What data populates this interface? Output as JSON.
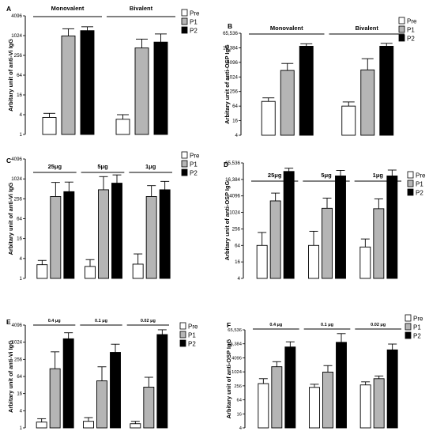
{
  "legend": {
    "labels": [
      "Pre",
      "P1",
      "P2"
    ],
    "colors": [
      "#ffffff",
      "#b5b5b5",
      "#000000"
    ]
  },
  "chart_data": [
    {
      "type": "bar",
      "panel": "A",
      "scale": "log2",
      "ylabel": "Arbitary unit of anti-Vi IgG",
      "yticks": [
        "1",
        "4",
        "16",
        "64",
        "256",
        "1024",
        "4096"
      ],
      "ylim": [
        1,
        4096
      ],
      "groups": [
        {
          "label": "Monovalent",
          "values": [
            3.3,
            1000,
            1450
          ],
          "errors": [
            4.4,
            1650,
            1900
          ]
        },
        {
          "label": "Bivalent",
          "values": [
            2.9,
            430,
            650
          ],
          "errors": [
            4.0,
            800,
            1150
          ]
        }
      ],
      "legend_pos": "top-right"
    },
    {
      "type": "bar",
      "panel": "B",
      "scale": "log2",
      "ylabel": "Arbitary unit of anti-OSP IgG",
      "yticks": [
        "4",
        "16",
        "64",
        "256",
        "1024",
        "4096",
        "16,384",
        "65,536"
      ],
      "ylim": [
        4,
        65536
      ],
      "groups": [
        {
          "label": "Monovalent",
          "values": [
            100,
            1900,
            19000
          ],
          "errors": [
            140,
            3700,
            24000
          ]
        },
        {
          "label": "Bivalent",
          "values": [
            64,
            2000,
            19000
          ],
          "errors": [
            95,
            5800,
            25000
          ]
        }
      ],
      "legend_pos": "top-right"
    },
    {
      "type": "bar",
      "panel": "C",
      "scale": "log2",
      "ylabel": "Arbitary unit of anti-Vi IgG",
      "yticks": [
        "1",
        "4",
        "16",
        "64",
        "256",
        "1024",
        "4096"
      ],
      "ylim": [
        1,
        4096
      ],
      "groups": [
        {
          "label": "25μg",
          "values": [
            2.6,
            300,
            420
          ],
          "errors": [
            3.5,
            800,
            820
          ]
        },
        {
          "label": "5μg",
          "values": [
            2.3,
            480,
            760
          ],
          "errors": [
            3.7,
            1200,
            1350
          ]
        },
        {
          "label": "1μg",
          "values": [
            2.7,
            300,
            480
          ],
          "errors": [
            5.5,
            640,
            860
          ]
        }
      ],
      "legend_pos": "top-right"
    },
    {
      "type": "bar",
      "panel": "D",
      "scale": "log2",
      "ylabel": "Arbitary unit of anti-OSP IgG",
      "yticks": [
        "4",
        "16",
        "64",
        "256",
        "1024",
        "4096",
        "16,384",
        "65,536"
      ],
      "ylim": [
        4,
        65536
      ],
      "groups": [
        {
          "label": "25μg",
          "values": [
            64,
            2700,
            32000
          ],
          "errors": [
            190,
            5200,
            42000
          ]
        },
        {
          "label": "5μg",
          "values": [
            64,
            1450,
            22000
          ],
          "errors": [
            210,
            3400,
            35000
          ]
        },
        {
          "label": "1μg",
          "values": [
            56,
            1400,
            22000
          ],
          "errors": [
            110,
            3200,
            36000
          ]
        }
      ],
      "legend_pos": "top-right"
    },
    {
      "type": "bar",
      "panel": "E",
      "scale": "log2",
      "ylabel": "Arbitary unit of anti-Vi IgG",
      "yticks": [
        "1",
        "4",
        "16",
        "64",
        "256",
        "1024",
        "4096"
      ],
      "ylim": [
        1,
        4096
      ],
      "groups": [
        {
          "label": "0.4 μg",
          "values": [
            1.6,
            120,
            1350
          ],
          "errors": [
            2.1,
            470,
            2200
          ]
        },
        {
          "label": "0.1 μg",
          "values": [
            1.7,
            45,
            450
          ],
          "errors": [
            2.3,
            140,
            870
          ]
        },
        {
          "label": "0.02 μg",
          "values": [
            1.4,
            27,
            1900
          ],
          "errors": [
            1.7,
            60,
            2800
          ]
        }
      ],
      "legend_pos": "top-right"
    },
    {
      "type": "bar",
      "panel": "F",
      "scale": "log2",
      "ylabel": "Arbitary unit of anti-OSP IgG",
      "yticks": [
        "4",
        "16",
        "64",
        "256",
        "1024",
        "4096",
        "16,384",
        "65,536"
      ],
      "ylim": [
        4,
        65536
      ],
      "groups": [
        {
          "label": "0.4 μg",
          "values": [
            320,
            1700,
            12000
          ],
          "errors": [
            520,
            2800,
            20000
          ]
        },
        {
          "label": "0.1 μg",
          "values": [
            220,
            1000,
            19000
          ],
          "errors": [
            300,
            1900,
            45000
          ]
        },
        {
          "label": "0.02 μg",
          "values": [
            280,
            520,
            9000
          ],
          "errors": [
            380,
            680,
            16000
          ]
        }
      ],
      "legend_pos": "top-right"
    }
  ]
}
